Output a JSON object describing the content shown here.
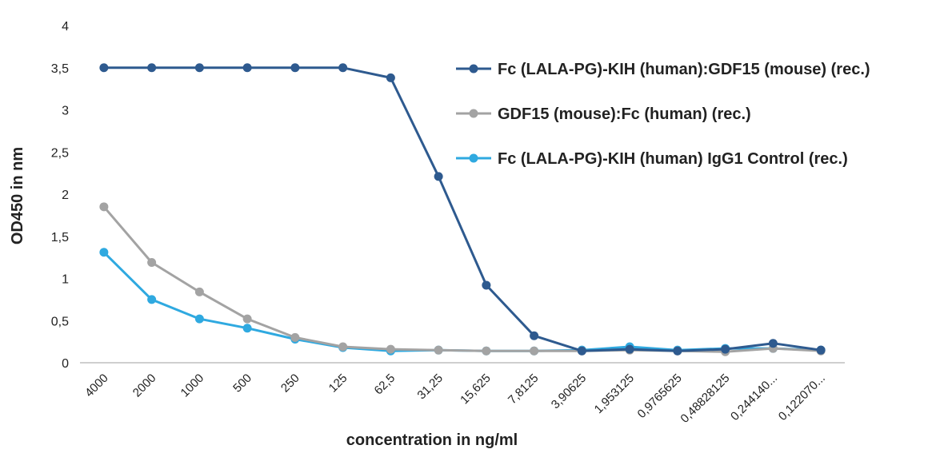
{
  "chart_data": {
    "type": "line",
    "title": "",
    "xlabel": "concentration in ng/ml",
    "ylabel": "OD450 in nm",
    "ylim": [
      0,
      4
    ],
    "yticks": [
      "0",
      "0,5",
      "1",
      "1,5",
      "2",
      "2,5",
      "3",
      "3,5",
      "4"
    ],
    "categories": [
      "4000",
      "2000",
      "1000",
      "500",
      "250",
      "125",
      "62,5",
      "31,25",
      "15,625",
      "7,8125",
      "3,90625",
      "1,953125",
      "0,9765625",
      "0,48828125",
      "0,244140...",
      "0,122070..."
    ],
    "grid": false,
    "legend_position": "top-right",
    "series": [
      {
        "name": "Fc (LALA-PG)-KIH (human):GDF15 (mouse) (rec.)",
        "color": "#2e5a8f",
        "values": [
          3.5,
          3.5,
          3.5,
          3.5,
          3.5,
          3.5,
          3.38,
          2.21,
          0.92,
          0.32,
          0.14,
          0.16,
          0.14,
          0.16,
          0.23,
          0.15
        ]
      },
      {
        "name": "GDF15 (mouse):Fc (human) (rec.)",
        "color": "#a3a3a3",
        "values": [
          1.85,
          1.19,
          0.84,
          0.52,
          0.3,
          0.19,
          0.16,
          0.15,
          0.14,
          0.14,
          0.14,
          0.15,
          0.14,
          0.13,
          0.17,
          0.14
        ]
      },
      {
        "name": "Fc (LALA-PG)-KIH (human) IgG1 Control (rec.)",
        "color": "#2fa9e0",
        "values": [
          1.31,
          0.75,
          0.52,
          0.41,
          0.28,
          0.18,
          0.14,
          0.15,
          0.14,
          0.14,
          0.15,
          0.19,
          0.15,
          0.17,
          0.17,
          0.15
        ]
      }
    ]
  }
}
